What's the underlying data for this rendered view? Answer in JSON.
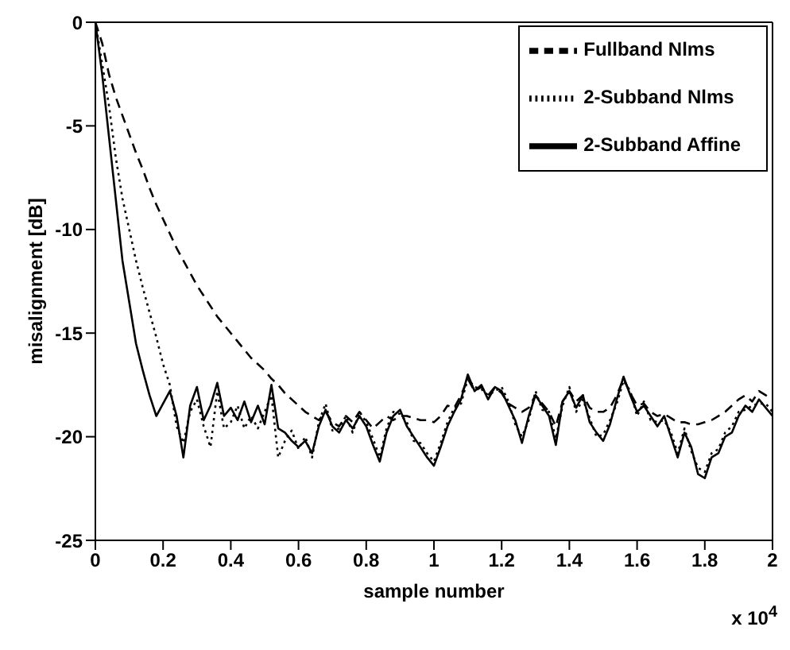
{
  "chart_data": {
    "type": "line",
    "xlabel": "sample number",
    "ylabel": "misalignment [dB]",
    "x": [
      0,
      0.02,
      0.04,
      0.06,
      0.08,
      0.1,
      0.12,
      0.14,
      0.16,
      0.18,
      0.2,
      0.22,
      0.24,
      0.26,
      0.28,
      0.3,
      0.32,
      0.34,
      0.36,
      0.38,
      0.4,
      0.42,
      0.44,
      0.46,
      0.48,
      0.5,
      0.52,
      0.54,
      0.56,
      0.58,
      0.6,
      0.62,
      0.64,
      0.66,
      0.68,
      0.7,
      0.72,
      0.74,
      0.76,
      0.78,
      0.8,
      0.82,
      0.84,
      0.86,
      0.88,
      0.9,
      0.92,
      0.94,
      0.96,
      0.98,
      1.0,
      1.02,
      1.04,
      1.06,
      1.08,
      1.1,
      1.12,
      1.14,
      1.16,
      1.18,
      1.2,
      1.22,
      1.24,
      1.26,
      1.28,
      1.3,
      1.32,
      1.34,
      1.36,
      1.38,
      1.4,
      1.42,
      1.44,
      1.46,
      1.48,
      1.5,
      1.52,
      1.54,
      1.56,
      1.58,
      1.6,
      1.62,
      1.64,
      1.66,
      1.68,
      1.7,
      1.72,
      1.74,
      1.76,
      1.78,
      1.8,
      1.82,
      1.84,
      1.86,
      1.88,
      1.9,
      1.92,
      1.94,
      1.96,
      1.98,
      2.0
    ],
    "series": [
      {
        "name": "Fullband Nlms",
        "color": "#000000",
        "line_style": "dashed",
        "values": [
          0,
          -1,
          -2.5,
          -3.6,
          -4.5,
          -5.4,
          -6.3,
          -7.1,
          -8,
          -8.8,
          -9.5,
          -10.2,
          -10.9,
          -11.5,
          -12.1,
          -12.7,
          -13.2,
          -13.7,
          -14.2,
          -14.6,
          -15,
          -15.4,
          -15.8,
          -16.2,
          -16.5,
          -16.8,
          -17.2,
          -17.5,
          -17.9,
          -18.2,
          -18.5,
          -18.8,
          -19,
          -19.2,
          -18.8,
          -19.3,
          -19.5,
          -19,
          -19.3,
          -18.8,
          -19.2,
          -19.6,
          -19.3,
          -19,
          -19.2,
          -19,
          -19,
          -19.1,
          -19.2,
          -19.2,
          -19.3,
          -19,
          -18.5,
          -18.6,
          -18,
          -17.2,
          -17.8,
          -17.6,
          -18,
          -17.6,
          -17.9,
          -18.4,
          -18.6,
          -18.8,
          -18.6,
          -18,
          -18.4,
          -18.8,
          -19.5,
          -18.3,
          -17.8,
          -18.3,
          -18,
          -18.6,
          -18.8,
          -18.8,
          -18.6,
          -18,
          -17.2,
          -17.9,
          -18.5,
          -18.4,
          -18.8,
          -19,
          -18.9,
          -19.1,
          -19.3,
          -19.3,
          -19.4,
          -19.4,
          -19.3,
          -19.2,
          -19,
          -18.8,
          -18.5,
          -18.2,
          -18,
          -18.3,
          -17.8,
          -18,
          -18.2
        ]
      },
      {
        "name": "2-Subband Nlms",
        "color": "#000000",
        "line_style": "dotted",
        "values": [
          0,
          -2,
          -4,
          -6.5,
          -8.5,
          -10,
          -11.5,
          -12.8,
          -14,
          -15.2,
          -16.5,
          -17.5,
          -19.5,
          -20.3,
          -18.8,
          -18.2,
          -19.5,
          -20.5,
          -17.8,
          -19.6,
          -19.3,
          -18.5,
          -19.6,
          -19,
          -19.6,
          -18.8,
          -18,
          -21,
          -20.2,
          -19.7,
          -20.6,
          -20,
          -21,
          -19.3,
          -18.4,
          -19.7,
          -19.6,
          -19,
          -19.8,
          -18.8,
          -19.3,
          -20.1,
          -21,
          -19.6,
          -18.8,
          -18.9,
          -19.3,
          -20.2,
          -20.3,
          -20.8,
          -21.2,
          -20.3,
          -19.3,
          -18.6,
          -18.4,
          -17.2,
          -17.6,
          -17.7,
          -18,
          -17.8,
          -17.6,
          -18.3,
          -19.4,
          -20,
          -19.2,
          -17.8,
          -18.7,
          -18.8,
          -20.1,
          -18.5,
          -17.6,
          -18.8,
          -18.2,
          -19.1,
          -20,
          -19.9,
          -19.2,
          -18.4,
          -17.3,
          -17.8,
          -19,
          -18.3,
          -19.2,
          -19.3,
          -19.2,
          -19.8,
          -20.8,
          -19.6,
          -20.7,
          -21.5,
          -21.7,
          -20.8,
          -20.6,
          -19.8,
          -19.5,
          -18.8,
          -18.7,
          -18.5,
          -18.4,
          -18.4,
          -18.8
        ]
      },
      {
        "name": "2-Subband Affine",
        "color": "#000000",
        "line_style": "solid",
        "values": [
          0,
          -2.5,
          -5.5,
          -8.5,
          -11.5,
          -13.5,
          -15.5,
          -16.8,
          -18,
          -19,
          -18.4,
          -17.8,
          -19,
          -21,
          -18.5,
          -17.6,
          -19.2,
          -18.5,
          -17.4,
          -19,
          -18.6,
          -19.2,
          -18.3,
          -19.3,
          -18.5,
          -19.4,
          -17.5,
          -19.6,
          -19.8,
          -20.2,
          -20.5,
          -20.2,
          -20.8,
          -19.5,
          -18.7,
          -19.5,
          -19.8,
          -19.2,
          -19.6,
          -19,
          -19.5,
          -20.4,
          -21.2,
          -19.8,
          -19,
          -18.7,
          -19.5,
          -20,
          -20.5,
          -21,
          -21.4,
          -20.5,
          -19.5,
          -18.8,
          -18.2,
          -17,
          -17.8,
          -17.5,
          -18.2,
          -17.6,
          -17.8,
          -18.5,
          -19.2,
          -20.3,
          -19,
          -18,
          -18.5,
          -19,
          -20.4,
          -18.3,
          -17.8,
          -18.6,
          -18,
          -19.3,
          -19.8,
          -20.2,
          -19.4,
          -18.2,
          -17.1,
          -18,
          -18.8,
          -18.5,
          -19,
          -19.5,
          -19,
          -20,
          -21,
          -19.8,
          -20.5,
          -21.8,
          -22,
          -21,
          -20.8,
          -20,
          -19.8,
          -19,
          -18.5,
          -18.8,
          -18.2,
          -18.6,
          -19
        ]
      }
    ],
    "xlim": [
      0,
      2
    ],
    "xticks": [
      0,
      0.2,
      0.4,
      0.6,
      0.8,
      1,
      1.2,
      1.4,
      1.6,
      1.8,
      2
    ],
    "ylim": [
      -25,
      0
    ],
    "yticks": [
      -25,
      -20,
      -15,
      -10,
      -5,
      0
    ],
    "legend": "top right",
    "annotations": [
      "x 10$^{4}$"
    ]
  }
}
